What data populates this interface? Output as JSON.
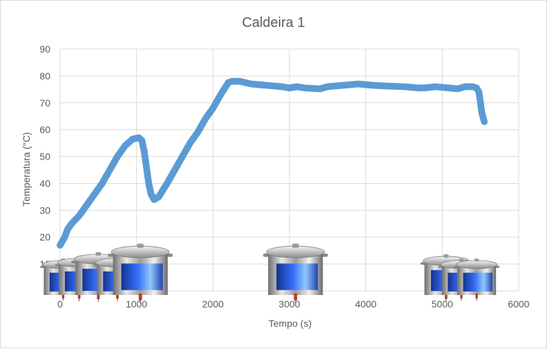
{
  "chart_data": {
    "type": "scatter",
    "title": "Caldeira 1",
    "xlabel": "Tempo (s)",
    "ylabel": "Temperatura (°C)",
    "xlim": [
      0,
      6000
    ],
    "ylim": [
      0,
      90
    ],
    "xticks": [
      0,
      1000,
      2000,
      3000,
      4000,
      5000,
      6000
    ],
    "yticks": [
      0,
      10,
      20,
      30,
      40,
      50,
      60,
      70,
      80,
      90
    ],
    "grid": true,
    "series_color": "#5b9bd5",
    "series": [
      {
        "points": [
          [
            0,
            17
          ],
          [
            60,
            20
          ],
          [
            100,
            23
          ],
          [
            150,
            25
          ],
          [
            250,
            28
          ],
          [
            350,
            32
          ],
          [
            450,
            36
          ],
          [
            550,
            40
          ],
          [
            650,
            45
          ],
          [
            750,
            50
          ],
          [
            850,
            54
          ],
          [
            950,
            56.5
          ],
          [
            1030,
            57
          ],
          [
            1070,
            56
          ],
          [
            1100,
            52
          ],
          [
            1130,
            46
          ],
          [
            1160,
            40
          ],
          [
            1190,
            36
          ],
          [
            1230,
            34
          ],
          [
            1290,
            35
          ],
          [
            1400,
            40
          ],
          [
            1500,
            45
          ],
          [
            1600,
            50
          ],
          [
            1700,
            55
          ],
          [
            1800,
            59
          ],
          [
            1900,
            64
          ],
          [
            2000,
            68
          ],
          [
            2100,
            73
          ],
          [
            2200,
            77.5
          ],
          [
            2250,
            78
          ],
          [
            2350,
            78
          ],
          [
            2500,
            77
          ],
          [
            2700,
            76.5
          ],
          [
            2900,
            76
          ],
          [
            3000,
            75.5
          ],
          [
            3100,
            76
          ],
          [
            3200,
            75.5
          ],
          [
            3400,
            75.2
          ],
          [
            3500,
            76
          ],
          [
            3700,
            76.5
          ],
          [
            3900,
            77
          ],
          [
            4100,
            76.5
          ],
          [
            4300,
            76.2
          ],
          [
            4500,
            76
          ],
          [
            4700,
            75.5
          ],
          [
            4800,
            75.6
          ],
          [
            4900,
            76
          ],
          [
            5100,
            75.5
          ],
          [
            5200,
            75.2
          ],
          [
            5300,
            76
          ],
          [
            5400,
            76
          ],
          [
            5450,
            75.5
          ],
          [
            5480,
            74
          ],
          [
            5500,
            70
          ],
          [
            5520,
            66
          ],
          [
            5550,
            63
          ]
        ]
      }
    ],
    "pot_icons": [
      {
        "x": 40,
        "scale": 0.85
      },
      {
        "x": 250,
        "scale": 0.9
      },
      {
        "x": 500,
        "scale": 1.0
      },
      {
        "x": 750,
        "scale": 0.9
      },
      {
        "x": 1050,
        "scale": 1.2
      },
      {
        "x": 3080,
        "scale": 1.2
      },
      {
        "x": 5050,
        "scale": 0.95
      },
      {
        "x": 5250,
        "scale": 0.85
      },
      {
        "x": 5450,
        "scale": 0.85
      }
    ]
  }
}
